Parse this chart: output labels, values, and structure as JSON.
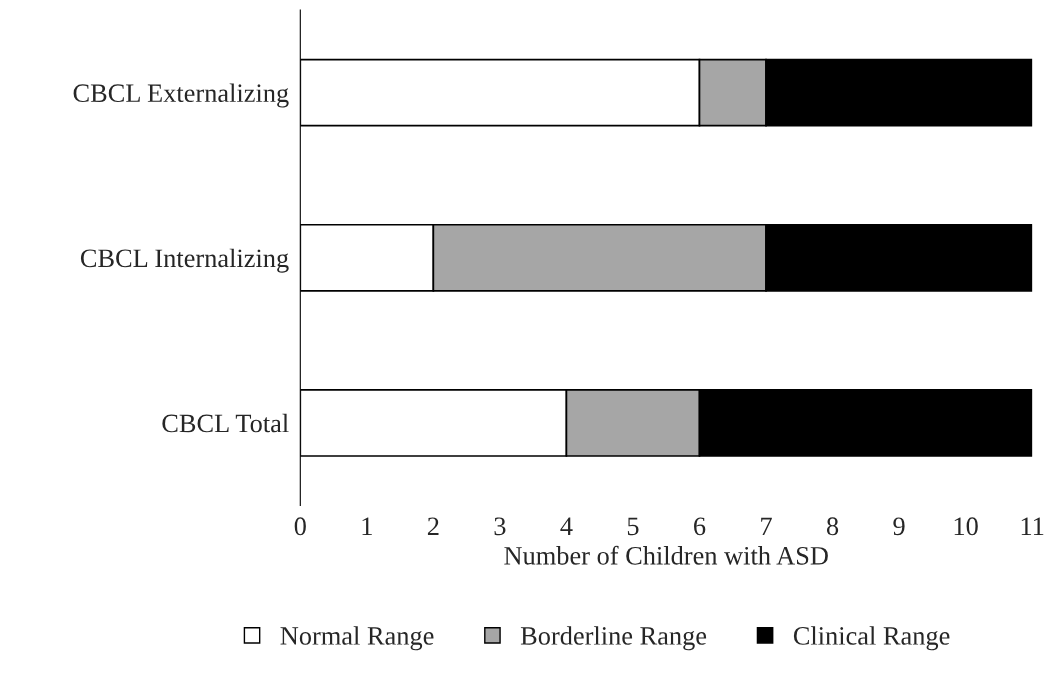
{
  "chart_data": {
    "type": "bar",
    "orientation": "horizontal",
    "stacked": true,
    "xlabel": "Number of Children with ASD",
    "categories": [
      "CBCL Externalizing",
      "CBCL Internalizing",
      "CBCL Total"
    ],
    "series": [
      {
        "name": "Normal Range",
        "color": "#ffffff",
        "values": [
          6,
          2,
          4
        ]
      },
      {
        "name": "Borderline Range",
        "color": "#a6a6a6",
        "values": [
          1,
          5,
          2
        ]
      },
      {
        "name": "Clinical Range",
        "color": "#000000",
        "values": [
          4,
          4,
          5
        ]
      }
    ],
    "xlim": [
      0,
      11
    ],
    "xticks": [
      0,
      1,
      2,
      3,
      4,
      5,
      6,
      7,
      8,
      9,
      10,
      11
    ],
    "grid": false,
    "legend": "bottom"
  }
}
